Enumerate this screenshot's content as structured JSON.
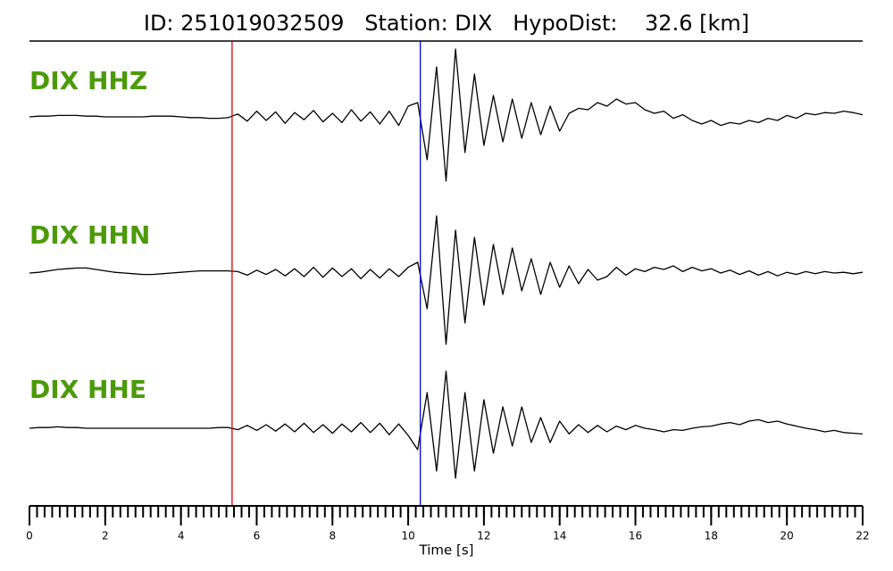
{
  "chart_data": {
    "type": "line",
    "title": "ID: 251019032509   Station: DIX   HypoDist:    32.6 [km]",
    "xlabel": "Time [s]",
    "xlim": [
      0,
      22
    ],
    "xticks": [
      0,
      2,
      4,
      6,
      8,
      10,
      12,
      14,
      16,
      18,
      20,
      22
    ],
    "minor_xtick_step": 0.2,
    "ylim": [
      -1,
      1
    ],
    "label_color": "#4c9a0a",
    "picks": [
      {
        "value": 5.35,
        "color": "#e00000"
      },
      {
        "value": 10.32,
        "color": "#0000e0"
      }
    ],
    "x": [
      0,
      0.25,
      0.5,
      0.75,
      1,
      1.25,
      1.5,
      1.75,
      2,
      2.25,
      2.5,
      2.75,
      3,
      3.25,
      3.5,
      3.75,
      4,
      4.25,
      4.5,
      4.75,
      5,
      5.25,
      5.5,
      5.75,
      6,
      6.25,
      6.5,
      6.75,
      7,
      7.25,
      7.5,
      7.75,
      8,
      8.25,
      8.5,
      8.75,
      9,
      9.25,
      9.5,
      9.75,
      10,
      10.25,
      10.5,
      10.75,
      11,
      11.25,
      11.5,
      11.75,
      12,
      12.25,
      12.5,
      12.75,
      13,
      13.25,
      13.5,
      13.75,
      14,
      14.25,
      14.5,
      14.75,
      15,
      15.25,
      15.5,
      15.75,
      16,
      16.25,
      16.5,
      16.75,
      17,
      17.25,
      17.5,
      17.75,
      18,
      18.25,
      18.5,
      18.75,
      19,
      19.25,
      19.5,
      19.75,
      20,
      20.25,
      20.5,
      20.75,
      21,
      21.25,
      21.5,
      21.75,
      22
    ],
    "series": [
      {
        "name": "DIX HHZ",
        "color": "#000000",
        "values": [
          0,
          0.01,
          0.01,
          0.02,
          0.02,
          0.02,
          0.01,
          0.01,
          0,
          0,
          0,
          0,
          0,
          0.01,
          0.01,
          0.01,
          0,
          -0.01,
          -0.01,
          -0.02,
          -0.02,
          -0.01,
          0.04,
          -0.06,
          0.08,
          -0.05,
          0.07,
          -0.09,
          0.06,
          -0.04,
          0.09,
          -0.07,
          0.05,
          -0.08,
          0.1,
          -0.06,
          0.07,
          -0.1,
          0.08,
          -0.12,
          0.15,
          0.2,
          -0.6,
          0.7,
          -0.9,
          0.95,
          -0.5,
          0.6,
          -0.4,
          0.3,
          -0.35,
          0.25,
          -0.3,
          0.2,
          -0.25,
          0.15,
          -0.2,
          0.05,
          0.12,
          0.1,
          0.2,
          0.15,
          0.25,
          0.18,
          0.2,
          0.1,
          0.05,
          0.08,
          -0.02,
          0.03,
          -0.05,
          -0.1,
          -0.05,
          -0.12,
          -0.08,
          -0.1,
          -0.05,
          -0.08,
          -0.02,
          -0.05,
          0.02,
          -0.02,
          0.05,
          0.03,
          0.06,
          0.05,
          0.08,
          0.06,
          0.03
        ]
      },
      {
        "name": "DIX HHN",
        "color": "#000000",
        "values": [
          0,
          0.01,
          0.03,
          0.05,
          0.06,
          0.07,
          0.07,
          0.05,
          0.03,
          0.01,
          0,
          -0.01,
          -0.02,
          -0.02,
          -0.01,
          0,
          0.01,
          0.02,
          0.03,
          0.03,
          0.03,
          0.03,
          0.02,
          -0.03,
          0.04,
          -0.02,
          0.05,
          -0.04,
          0.06,
          -0.05,
          0.08,
          -0.06,
          0.07,
          -0.05,
          0.06,
          -0.08,
          0.05,
          -0.07,
          0.06,
          -0.05,
          0.08,
          0.15,
          -0.5,
          0.8,
          -1.0,
          0.6,
          -0.7,
          0.5,
          -0.45,
          0.4,
          -0.3,
          0.35,
          -0.25,
          0.2,
          -0.3,
          0.15,
          -0.2,
          0.1,
          -0.15,
          0.05,
          -0.1,
          -0.05,
          0.08,
          -0.03,
          0.06,
          0.02,
          0.08,
          0.05,
          0.1,
          0.02,
          0.08,
          0.03,
          0.06,
          0,
          0.04,
          -0.02,
          0.03,
          -0.03,
          0.02,
          -0.04,
          0.01,
          -0.02,
          0.02,
          -0.01,
          0.02,
          0,
          0.01,
          -0.01,
          0.01
        ]
      },
      {
        "name": "DIX HHE",
        "color": "#000000",
        "values": [
          0,
          0.01,
          0.01,
          0.02,
          0.01,
          0.01,
          0,
          0,
          0,
          0,
          0,
          0,
          0,
          0,
          0,
          0,
          0,
          0,
          0,
          0,
          0.01,
          0.01,
          -0.02,
          0.04,
          -0.03,
          0.05,
          -0.04,
          0.06,
          -0.05,
          0.07,
          -0.06,
          0.05,
          -0.07,
          0.06,
          -0.05,
          0.08,
          -0.06,
          0.07,
          -0.09,
          0.06,
          -0.1,
          -0.3,
          0.5,
          -0.6,
          0.8,
          -0.7,
          0.5,
          -0.6,
          0.4,
          -0.35,
          0.3,
          -0.25,
          0.3,
          -0.2,
          0.15,
          -0.2,
          0.1,
          -0.08,
          0.05,
          -0.06,
          0.04,
          -0.05,
          0.03,
          -0.02,
          0.04,
          0,
          -0.02,
          -0.05,
          -0.02,
          -0.03,
          0,
          0.02,
          0.03,
          0.06,
          0.08,
          0.05,
          0.1,
          0.12,
          0.08,
          0.1,
          0.06,
          0.03,
          0,
          -0.02,
          -0.05,
          -0.03,
          -0.06,
          -0.07,
          -0.08
        ]
      }
    ]
  }
}
